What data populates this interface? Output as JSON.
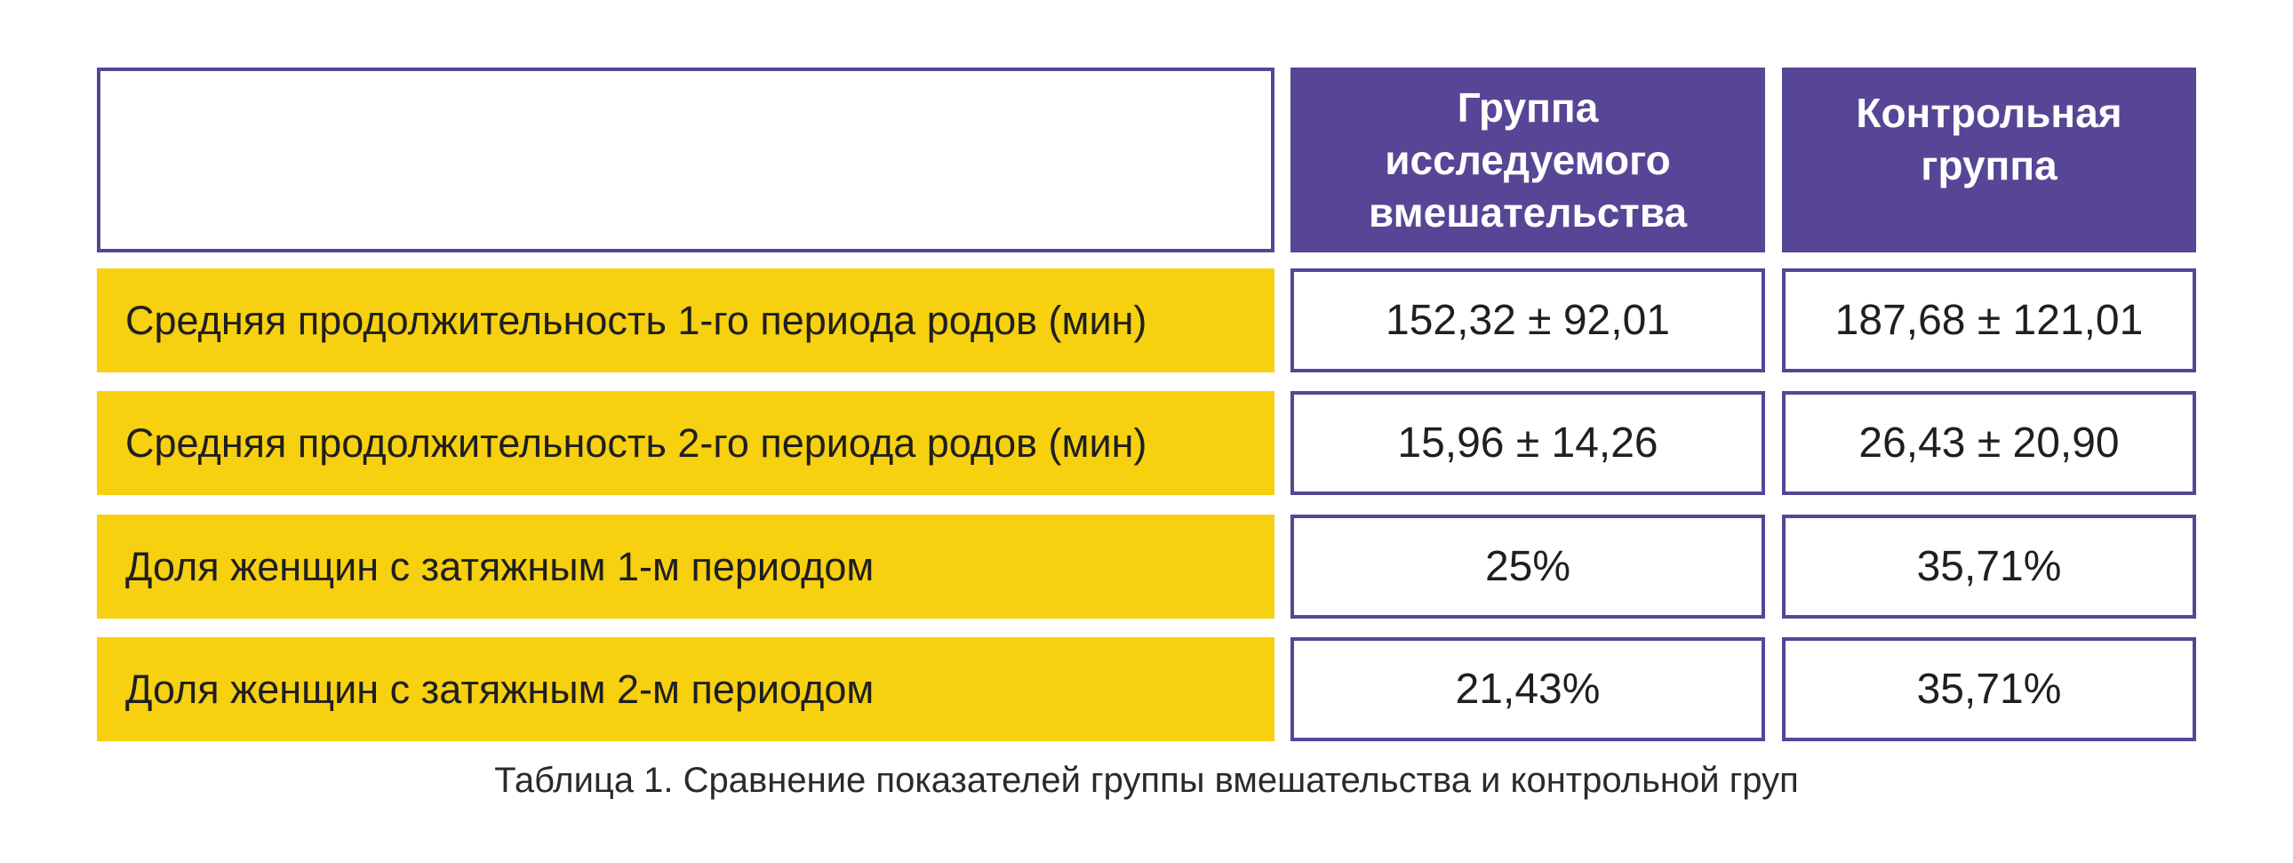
{
  "table": {
    "headers": [
      "Группа\nисследуемого\nвмешательства",
      "Контрольная\nгруппа"
    ],
    "rows": [
      {
        "label": "Средняя продолжительность 1-го периода родов (мин)",
        "intervention": "152,32 ± 92,01",
        "control": "187,68 ± 121,01"
      },
      {
        "label": "Средняя продолжительность 2-го периода родов (мин)",
        "intervention": "15,96 ± 14,26",
        "control": "26,43 ± 20,90"
      },
      {
        "label": "Доля женщин с затяжным 1-м периодом",
        "intervention": "25%",
        "control": "35,71%"
      },
      {
        "label": "Доля женщин с затяжным 2-м периодом",
        "intervention": "21,43%",
        "control": "35,71%"
      }
    ]
  },
  "caption": "Таблица 1. Сравнение показателей группы вмешательства и контрольной груп",
  "colors": {
    "header_bg": "#574596",
    "label_bg": "#f7d00f",
    "border": "#574596"
  }
}
